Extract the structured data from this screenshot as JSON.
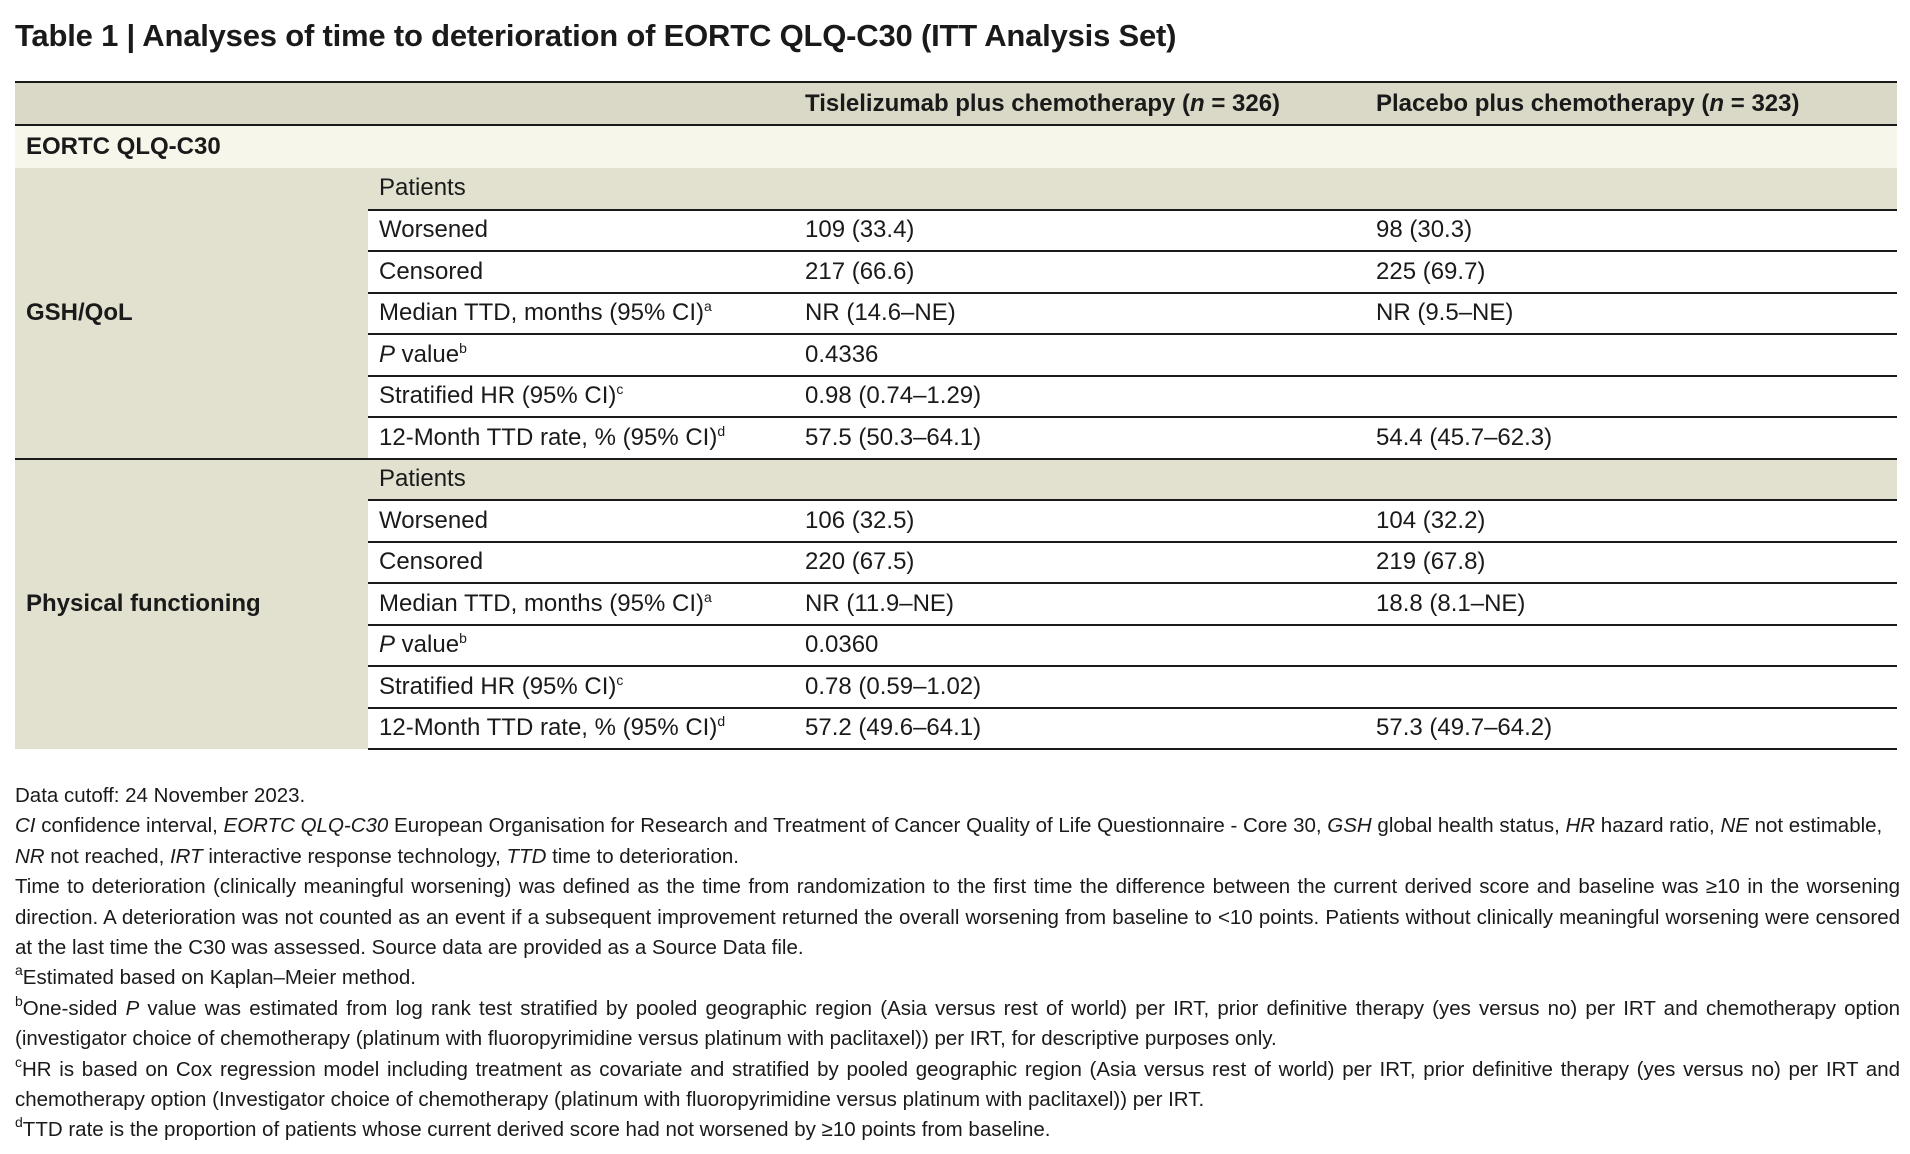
{
  "title": "Table 1 | Analyses of time to deterioration of EORTC QLQ-C30 (ITT Analysis Set)",
  "columns": {
    "treatment": {
      "label_before": "Tislelizumab plus chemotherapy (",
      "n_symbol": "n",
      "label_after": " = 326)"
    },
    "placebo": {
      "label_before": "Placebo plus chemotherapy (",
      "n_symbol": "n",
      "label_after": " = 323)"
    }
  },
  "section_label": "EORTC QLQ-C30",
  "groups": [
    {
      "name": "GSH/QoL",
      "patients_label": "Patients",
      "rows": [
        {
          "label": "Worsened",
          "sup": "",
          "treatment": "109 (33.4)",
          "placebo": "98 (30.3)"
        },
        {
          "label": "Censored",
          "sup": "",
          "treatment": "217 (66.6)",
          "placebo": "225 (69.7)"
        },
        {
          "label": "Median TTD, months (95% CI)",
          "sup": "a",
          "treatment": "NR (14.6–NE)",
          "placebo": "NR (9.5–NE)"
        },
        {
          "label_italic": "P",
          "label": " value",
          "sup": "b",
          "treatment": "0.4336",
          "placebo": ""
        },
        {
          "label": "Stratified HR (95% CI)",
          "sup": "c",
          "treatment": "0.98 (0.74–1.29)",
          "placebo": ""
        },
        {
          "label": "12-Month TTD rate, % (95% CI)",
          "sup": "d",
          "treatment": "57.5 (50.3–64.1)",
          "placebo": "54.4 (45.7–62.3)"
        }
      ]
    },
    {
      "name": "Physical functioning",
      "patients_label": "Patients",
      "rows": [
        {
          "label": "Worsened",
          "sup": "",
          "treatment": "106 (32.5)",
          "placebo": "104 (32.2)"
        },
        {
          "label": "Censored",
          "sup": "",
          "treatment": "220 (67.5)",
          "placebo": "219 (67.8)"
        },
        {
          "label": "Median TTD, months (95% CI)",
          "sup": "a",
          "treatment": "NR (11.9–NE)",
          "placebo": "18.8 (8.1–NE)"
        },
        {
          "label_italic": "P",
          "label": " value",
          "sup": "b",
          "treatment": "0.0360",
          "placebo": ""
        },
        {
          "label": "Stratified HR (95% CI)",
          "sup": "c",
          "treatment": "0.78 (0.59–1.02)",
          "placebo": ""
        },
        {
          "label": "12-Month TTD rate, % (95% CI)",
          "sup": "d",
          "treatment": "57.2 (49.6–64.1)",
          "placebo": "57.3 (49.7–64.2)"
        }
      ]
    }
  ],
  "notes": {
    "cutoff": "Data cutoff: 24 November 2023.",
    "abbreviations": [
      {
        "term": "CI",
        "def": " confidence interval, "
      },
      {
        "term": "EORTC QLQ-C30",
        "def": " European Organisation for Research and Treatment of Cancer Quality of Life Questionnaire - Core 30, "
      },
      {
        "term": "GSH",
        "def": " global health status, "
      },
      {
        "term": "HR",
        "def": " hazard ratio, "
      },
      {
        "term": "NE",
        "def": " not estimable, "
      },
      {
        "term": "NR",
        "def": " not reached, "
      },
      {
        "term": "IRT",
        "def": " interactive response technology, "
      },
      {
        "term": "TTD",
        "def": " time to deterioration."
      }
    ],
    "definition": "Time to deterioration (clinically meaningful worsening) was defined as the time from randomization to the first time the difference between the current derived score and baseline was ≥10 in the worsening direction. A deterioration was not counted as an event if a subsequent improvement returned the overall worsening from baseline to <10 points. Patients without clinically meaningful worsening were censored at the last time the C30 was assessed. Source data are provided as a Source Data file.",
    "footnote_a": {
      "mark": "a",
      "text": "Estimated based on Kaplan–Meier method."
    },
    "footnote_b": {
      "mark": "b",
      "text_before": "One-sided ",
      "italic": "P",
      "text_after": " value was estimated from log rank test stratified by pooled geographic region (Asia versus rest of world) per IRT, prior definitive therapy (yes versus no) per IRT and chemotherapy option (investigator choice of chemotherapy (platinum with fluoropyrimidine versus platinum with paclitaxel)) per IRT, for descriptive purposes only."
    },
    "footnote_c": {
      "mark": "c",
      "text": "HR is based on Cox regression model including treatment as covariate and stratified by pooled geographic region (Asia versus rest of world) per IRT, prior definitive therapy (yes versus no) per IRT and chemotherapy option (Investigator choice of chemotherapy (platinum with fluoropyrimidine versus platinum with paclitaxel)) per IRT."
    },
    "footnote_d": {
      "mark": "d",
      "text": "TTD rate is the proportion of patients whose current derived score had not worsened by ≥10 points from baseline."
    }
  }
}
